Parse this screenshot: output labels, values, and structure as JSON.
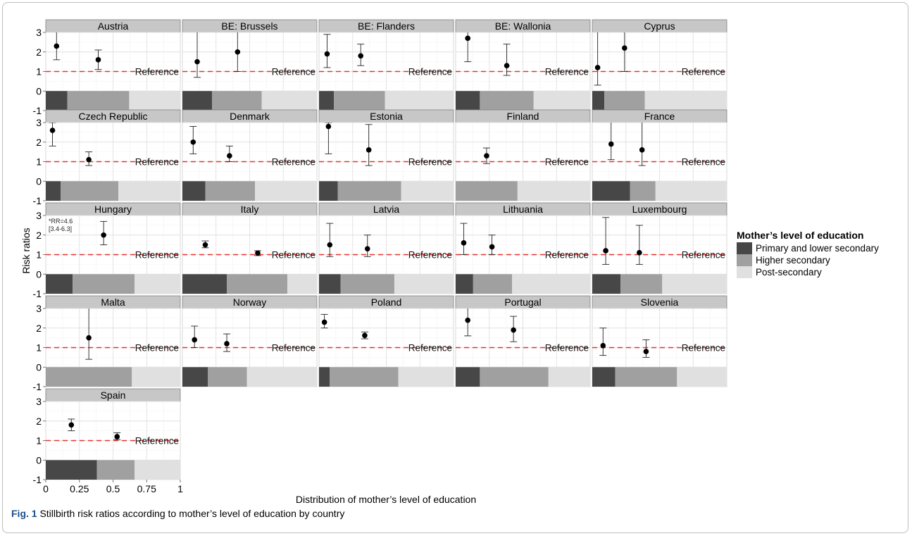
{
  "caption": {
    "label": "Fig. 1",
    "text": "Stillbirth risk ratios according to mother’s level of education by country"
  },
  "chart_data": {
    "type": "scatter",
    "subtype": "faceted risk ratio plot with confidence intervals and distribution bars",
    "xlabel": "Distribution of mother’s level of education",
    "ylabel": "Risk ratios",
    "xlim": [
      0,
      1
    ],
    "ylim": [
      -1,
      3
    ],
    "x_ticks": [
      "0",
      "0.25",
      "0.5",
      "0.75",
      "1"
    ],
    "y_ticks": [
      "-1",
      "0",
      "1",
      "2",
      "3"
    ],
    "reference_line": {
      "y": 1,
      "label": "Reference",
      "color": "#e8312f"
    },
    "legend": {
      "title": "Mother’s level of education",
      "placement": "right",
      "entries": [
        {
          "name": "Primary and lower secondary",
          "color": "#474747"
        },
        {
          "name": "Higher secondary",
          "color": "#a0a0a0"
        },
        {
          "name": "Post-secondary",
          "color": "#e0e0e0"
        }
      ]
    },
    "panels": [
      {
        "country": "Austria",
        "shares": [
          0.16,
          0.46,
          0.38
        ],
        "points": [
          {
            "x": 0.08,
            "rr": 2.3,
            "lo": 1.6,
            "hi": 3.1
          },
          {
            "x": 0.39,
            "rr": 1.6,
            "lo": 1.1,
            "hi": 2.1
          }
        ]
      },
      {
        "country": "BE: Brussels",
        "shares": [
          0.22,
          0.37,
          0.41
        ],
        "points": [
          {
            "x": 0.11,
            "rr": 1.5,
            "lo": 0.7,
            "hi": 3.3
          },
          {
            "x": 0.41,
            "rr": 2.0,
            "lo": 1.0,
            "hi": 3.5
          }
        ]
      },
      {
        "country": "BE: Flanders",
        "shares": [
          0.11,
          0.38,
          0.51
        ],
        "points": [
          {
            "x": 0.06,
            "rr": 1.9,
            "lo": 1.2,
            "hi": 2.9
          },
          {
            "x": 0.31,
            "rr": 1.8,
            "lo": 1.3,
            "hi": 2.4
          }
        ]
      },
      {
        "country": "BE: Wallonia",
        "shares": [
          0.18,
          0.4,
          0.42
        ],
        "points": [
          {
            "x": 0.09,
            "rr": 2.7,
            "lo": 1.5,
            "hi": 3.3
          },
          {
            "x": 0.38,
            "rr": 1.3,
            "lo": 0.8,
            "hi": 2.4
          }
        ]
      },
      {
        "country": "Cyprus",
        "shares": [
          0.09,
          0.3,
          0.61
        ],
        "points": [
          {
            "x": 0.04,
            "rr": 1.2,
            "lo": 0.3,
            "hi": 3.5
          },
          {
            "x": 0.24,
            "rr": 2.2,
            "lo": 1.0,
            "hi": 3.6
          }
        ]
      },
      {
        "country": "Czech Republic",
        "shares": [
          0.11,
          0.43,
          0.46
        ],
        "points": [
          {
            "x": 0.05,
            "rr": 2.6,
            "lo": 1.8,
            "hi": 3.0
          },
          {
            "x": 0.32,
            "rr": 1.1,
            "lo": 0.8,
            "hi": 1.5
          }
        ]
      },
      {
        "country": "Denmark",
        "shares": [
          0.17,
          0.37,
          0.46
        ],
        "points": [
          {
            "x": 0.08,
            "rr": 2.0,
            "lo": 1.4,
            "hi": 2.8
          },
          {
            "x": 0.35,
            "rr": 1.3,
            "lo": 1.0,
            "hi": 1.8
          }
        ]
      },
      {
        "country": "Estonia",
        "shares": [
          0.14,
          0.47,
          0.39
        ],
        "points": [
          {
            "x": 0.07,
            "rr": 2.8,
            "lo": 1.4,
            "hi": 3.0
          },
          {
            "x": 0.37,
            "rr": 1.6,
            "lo": 0.8,
            "hi": 2.9
          }
        ]
      },
      {
        "country": "Finland",
        "shares": [
          0.0,
          0.46,
          0.54
        ],
        "points": [
          {
            "x": 0.23,
            "rr": 1.3,
            "lo": 0.9,
            "hi": 1.7
          }
        ]
      },
      {
        "country": "France",
        "shares": [
          0.28,
          0.19,
          0.53
        ],
        "points": [
          {
            "x": 0.14,
            "rr": 1.9,
            "lo": 1.1,
            "hi": 3.4
          },
          {
            "x": 0.37,
            "rr": 1.6,
            "lo": 0.8,
            "hi": 3.3
          }
        ]
      },
      {
        "country": "Hungary",
        "shares": [
          0.2,
          0.46,
          0.34
        ],
        "annotation": "*RR=4.6\n[3.4-6.3]",
        "points": [
          {
            "x": 0.43,
            "rr": 2.0,
            "lo": 1.5,
            "hi": 2.7
          }
        ]
      },
      {
        "country": "Italy",
        "shares": [
          0.33,
          0.45,
          0.22
        ],
        "points": [
          {
            "x": 0.17,
            "rr": 1.5,
            "lo": 1.35,
            "hi": 1.7
          },
          {
            "x": 0.56,
            "rr": 1.08,
            "lo": 0.95,
            "hi": 1.2
          }
        ]
      },
      {
        "country": "Latvia",
        "shares": [
          0.16,
          0.4,
          0.44
        ],
        "points": [
          {
            "x": 0.08,
            "rr": 1.5,
            "lo": 0.9,
            "hi": 2.6
          },
          {
            "x": 0.36,
            "rr": 1.3,
            "lo": 0.9,
            "hi": 2.0
          }
        ]
      },
      {
        "country": "Lithuania",
        "shares": [
          0.13,
          0.29,
          0.58
        ],
        "points": [
          {
            "x": 0.06,
            "rr": 1.6,
            "lo": 1.0,
            "hi": 2.6
          },
          {
            "x": 0.27,
            "rr": 1.4,
            "lo": 1.0,
            "hi": 2.0
          }
        ]
      },
      {
        "country": "Luxembourg",
        "shares": [
          0.21,
          0.31,
          0.48
        ],
        "points": [
          {
            "x": 0.1,
            "rr": 1.2,
            "lo": 0.5,
            "hi": 2.9
          },
          {
            "x": 0.35,
            "rr": 1.1,
            "lo": 0.5,
            "hi": 2.5
          }
        ]
      },
      {
        "country": "Malta",
        "shares": [
          0.0,
          0.64,
          0.36
        ],
        "points": [
          {
            "x": 0.32,
            "rr": 1.5,
            "lo": 0.4,
            "hi": 3.3
          }
        ]
      },
      {
        "country": "Norway",
        "shares": [
          0.19,
          0.29,
          0.52
        ],
        "points": [
          {
            "x": 0.09,
            "rr": 1.4,
            "lo": 1.0,
            "hi": 2.1
          },
          {
            "x": 0.33,
            "rr": 1.2,
            "lo": 0.8,
            "hi": 1.7
          }
        ]
      },
      {
        "country": "Poland",
        "shares": [
          0.08,
          0.51,
          0.41
        ],
        "points": [
          {
            "x": 0.04,
            "rr": 2.3,
            "lo": 2.0,
            "hi": 2.7
          },
          {
            "x": 0.34,
            "rr": 1.62,
            "lo": 1.45,
            "hi": 1.8
          }
        ]
      },
      {
        "country": "Portugal",
        "shares": [
          0.18,
          0.51,
          0.31
        ],
        "points": [
          {
            "x": 0.09,
            "rr": 2.4,
            "lo": 1.6,
            "hi": 3.2
          },
          {
            "x": 0.43,
            "rr": 1.9,
            "lo": 1.3,
            "hi": 2.6
          }
        ]
      },
      {
        "country": "Slovenia",
        "shares": [
          0.17,
          0.46,
          0.37
        ],
        "points": [
          {
            "x": 0.08,
            "rr": 1.1,
            "lo": 0.6,
            "hi": 2.0
          },
          {
            "x": 0.4,
            "rr": 0.8,
            "lo": 0.5,
            "hi": 1.4
          }
        ]
      },
      {
        "country": "Spain",
        "shares": [
          0.38,
          0.28,
          0.34
        ],
        "points": [
          {
            "x": 0.19,
            "rr": 1.8,
            "lo": 1.5,
            "hi": 2.1
          },
          {
            "x": 0.53,
            "rr": 1.2,
            "lo": 1.05,
            "hi": 1.4
          }
        ]
      }
    ]
  }
}
